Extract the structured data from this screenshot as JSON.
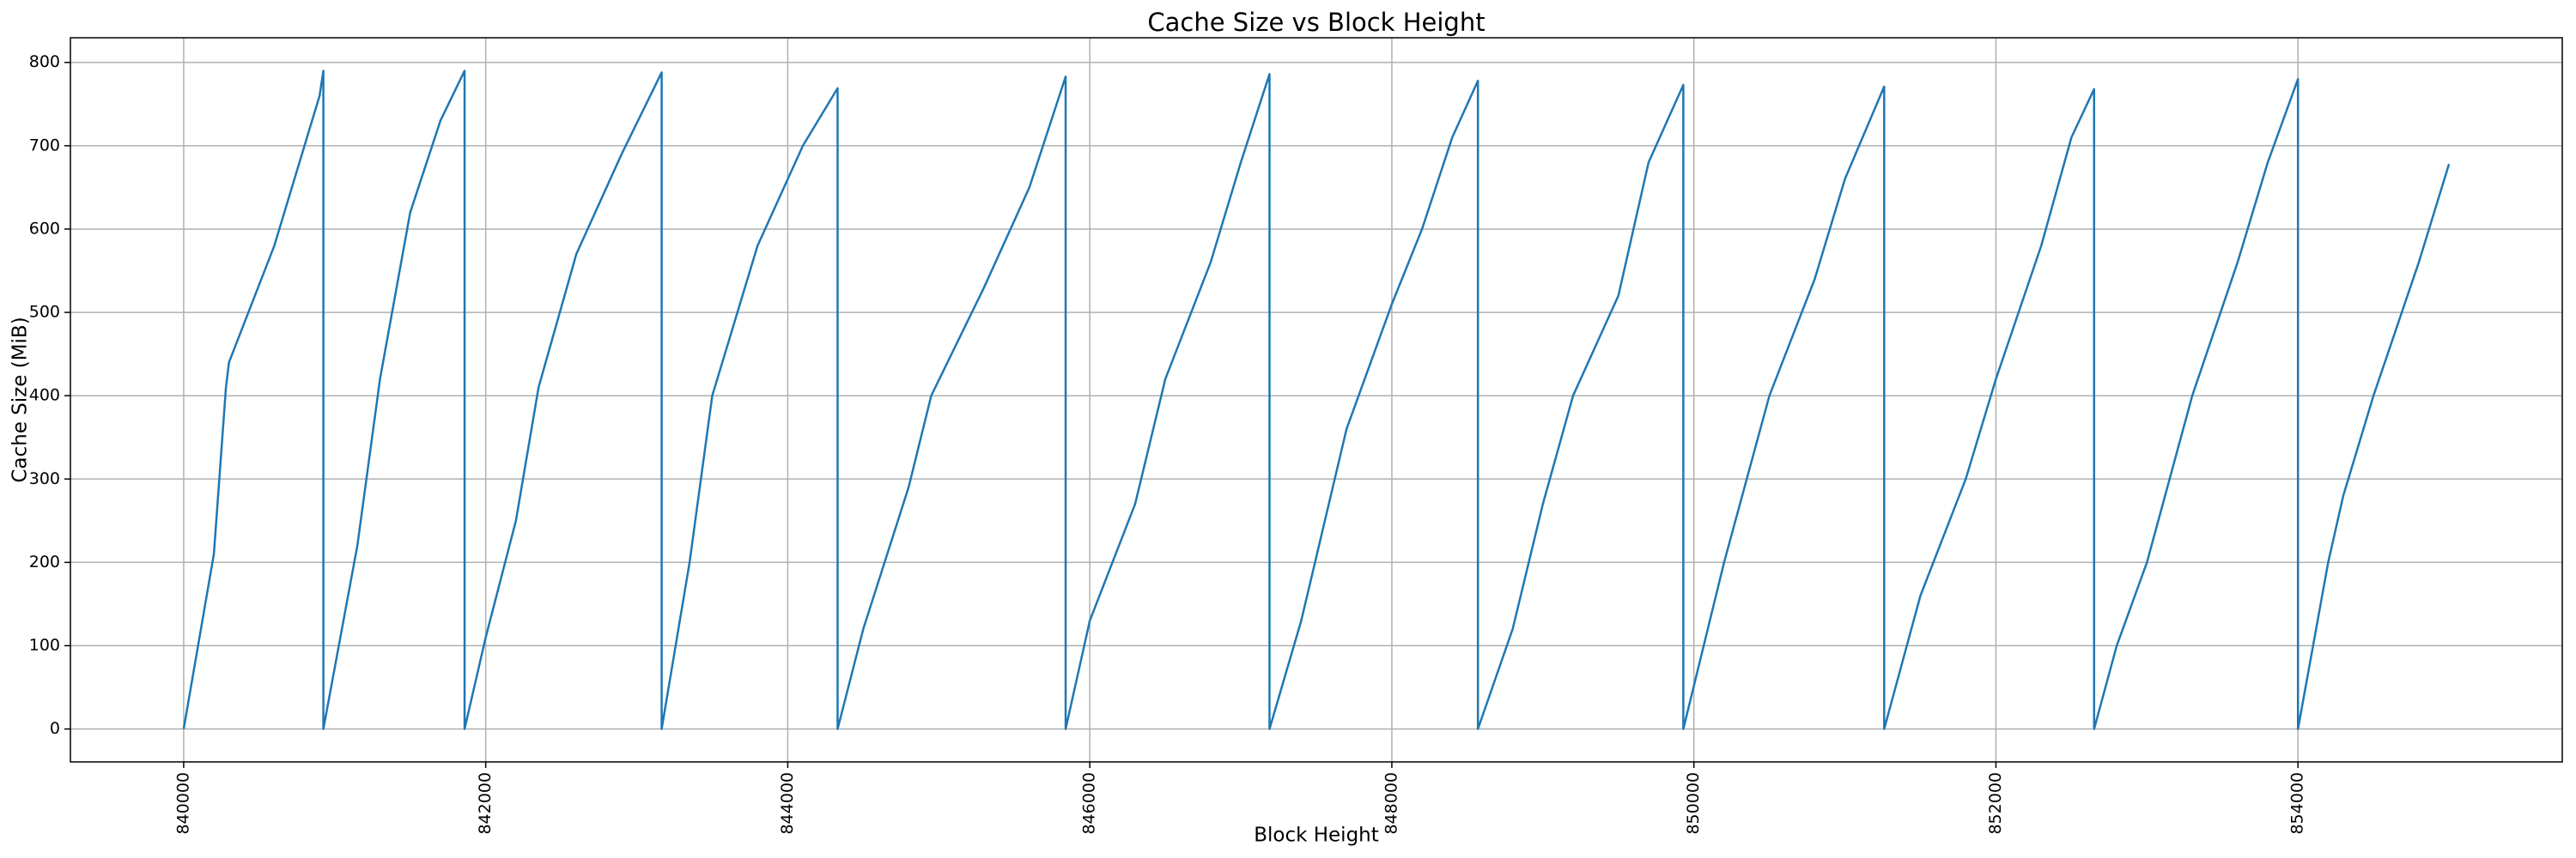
{
  "chart_data": {
    "type": "line",
    "title": "Cache Size vs Block Height",
    "x_label": "Block Height",
    "y_label": "Cache Size (MiB)",
    "x": [
      840000,
      840200,
      840280,
      840300,
      840600,
      840800,
      840900,
      840925,
      840925,
      841150,
      841300,
      841500,
      841700,
      841860,
      841860,
      842000,
      842200,
      842350,
      842600,
      842900,
      843165,
      843165,
      843350,
      843500,
      843800,
      844100,
      844330,
      844330,
      844500,
      844800,
      844950,
      845300,
      845600,
      845840,
      845840,
      846000,
      846300,
      846500,
      846800,
      847000,
      847190,
      847190,
      847400,
      847700,
      848000,
      848200,
      848400,
      848570,
      848570,
      848800,
      849000,
      849200,
      849500,
      849700,
      849930,
      849930,
      850200,
      850500,
      850800,
      851000,
      851260,
      851260,
      851500,
      851800,
      852000,
      852300,
      852500,
      852650,
      852650,
      852800,
      853000,
      853300,
      853600,
      853800,
      854000,
      854000,
      854200,
      854300,
      854500,
      854800,
      855000
    ],
    "series": [
      {
        "name": "Cache Size",
        "color": "#1f77b4",
        "values": [
          0,
          210,
          410,
          440,
          580,
          700,
          760,
          790,
          0,
          220,
          420,
          620,
          730,
          790,
          0,
          110,
          250,
          410,
          570,
          690,
          788,
          0,
          200,
          400,
          580,
          700,
          769,
          0,
          120,
          290,
          400,
          530,
          650,
          783,
          0,
          130,
          270,
          420,
          560,
          680,
          786,
          0,
          130,
          360,
          510,
          600,
          710,
          778,
          0,
          120,
          270,
          400,
          520,
          680,
          773,
          0,
          200,
          400,
          540,
          660,
          771,
          0,
          160,
          300,
          420,
          580,
          710,
          768,
          0,
          100,
          200,
          400,
          560,
          680,
          780,
          0,
          200,
          280,
          400,
          560,
          678
        ]
      }
    ],
    "xlim": [
      839250,
      855750
    ],
    "ylim": [
      -39.5,
      829.6
    ],
    "xticks": [
      840000,
      842000,
      844000,
      846000,
      848000,
      850000,
      852000,
      854000
    ],
    "yticks": [
      0,
      100,
      200,
      300,
      400,
      500,
      600,
      700,
      800
    ],
    "grid": true
  }
}
